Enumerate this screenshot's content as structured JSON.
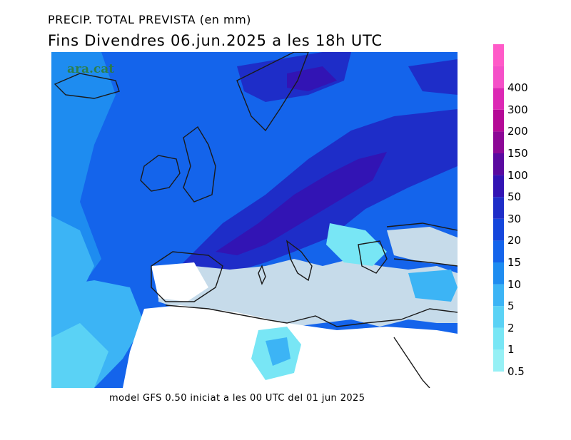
{
  "header": {
    "title": "PRECIP. TOTAL PREVISTA (en mm)",
    "subtitle": "Fins Divendres 06.jun.2025 a les 18h UTC"
  },
  "map": {
    "watermark": "ara.cat",
    "colors": {
      "sea": "#c6dbea",
      "land_dry": "#ffffff",
      "coast": "#1a1a1a"
    }
  },
  "footer": {
    "model": "model GFS 0.50 iniciat a les 00 UTC del 01 jun 2025"
  },
  "legend": {
    "units": "mm",
    "bins": [
      {
        "label": "0.5",
        "color": "#96f0f5"
      },
      {
        "label": "1",
        "color": "#78e6f5"
      },
      {
        "label": "2",
        "color": "#5ad2f5"
      },
      {
        "label": "5",
        "color": "#3cb4f5"
      },
      {
        "label": "10",
        "color": "#1e8cf0"
      },
      {
        "label": "15",
        "color": "#1464eb"
      },
      {
        "label": "20",
        "color": "#1446dc"
      },
      {
        "label": "30",
        "color": "#1e2dc8"
      },
      {
        "label": "50",
        "color": "#3214b4"
      },
      {
        "label": "100",
        "color": "#5a0aa0"
      },
      {
        "label": "150",
        "color": "#8c0896"
      },
      {
        "label": "200",
        "color": "#b40a96"
      },
      {
        "label": "300",
        "color": "#dc28b4"
      },
      {
        "label": "400",
        "color": "#f550c8"
      }
    ],
    "top_color": "#ff5ac8"
  }
}
